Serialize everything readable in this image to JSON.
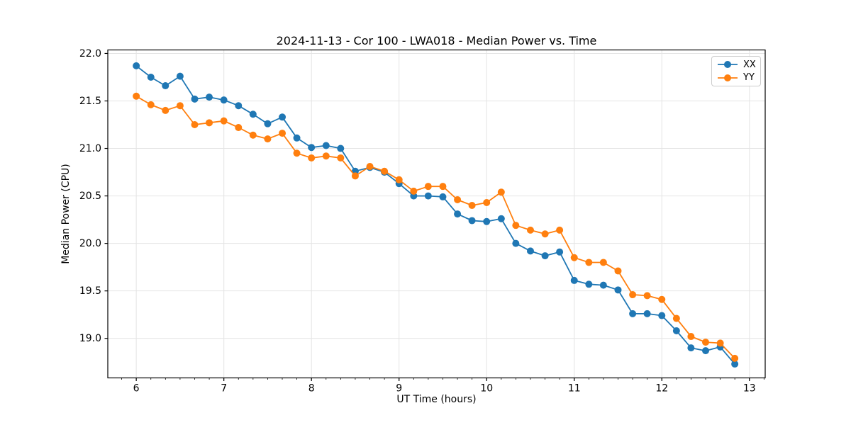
{
  "figure": {
    "title": "2024-11-13 - Cor 100 - LWA018 - Median Power vs. Time",
    "xlabel": "UT Time (hours)",
    "ylabel": "Median Power (CPU)"
  },
  "chart_data": {
    "type": "line",
    "title": "2024-11-13 - Cor 100 - LWA018 - Median Power vs. Time",
    "xlabel": "UT Time (hours)",
    "ylabel": "Median Power (CPU)",
    "grid": true,
    "legend_position": "upper right",
    "xlim": [
      5.675,
      13.18
    ],
    "ylim": [
      18.584,
      22.037
    ],
    "xticks": [
      6,
      7,
      8,
      9,
      10,
      11,
      12,
      13
    ],
    "yticks": [
      19.0,
      19.5,
      20.0,
      20.5,
      21.0,
      21.5,
      22.0
    ],
    "x_minor_tick_interval": 0.166667,
    "x": [
      6.0,
      6.167,
      6.333,
      6.5,
      6.667,
      6.833,
      7.0,
      7.167,
      7.333,
      7.5,
      7.667,
      7.833,
      8.0,
      8.167,
      8.333,
      8.5,
      8.667,
      8.833,
      9.0,
      9.167,
      9.333,
      9.5,
      9.667,
      9.833,
      10.0,
      10.167,
      10.333,
      10.5,
      10.667,
      10.833,
      11.0,
      11.167,
      11.333,
      11.5,
      11.667,
      11.833,
      12.0,
      12.167,
      12.333,
      12.5,
      12.667,
      12.833
    ],
    "series": [
      {
        "name": "XX",
        "color": "#1f77b4",
        "values": [
          21.87,
          21.75,
          21.66,
          21.76,
          21.52,
          21.54,
          21.51,
          21.45,
          21.36,
          21.26,
          21.33,
          21.11,
          21.01,
          21.03,
          21.0,
          20.76,
          20.8,
          20.75,
          20.63,
          20.5,
          20.5,
          20.49,
          20.31,
          20.24,
          20.23,
          20.26,
          20.0,
          19.92,
          19.87,
          19.91,
          19.61,
          19.57,
          19.56,
          19.51,
          19.26,
          19.26,
          19.24,
          19.08,
          18.9,
          18.87,
          18.91,
          18.73
        ]
      },
      {
        "name": "YY",
        "color": "#ff7f0e",
        "values": [
          21.55,
          21.46,
          21.4,
          21.45,
          21.25,
          21.27,
          21.29,
          21.22,
          21.14,
          21.1,
          21.16,
          20.95,
          20.9,
          20.92,
          20.9,
          20.71,
          20.81,
          20.76,
          20.67,
          20.55,
          20.6,
          20.6,
          20.46,
          20.4,
          20.43,
          20.54,
          20.19,
          20.14,
          20.1,
          20.14,
          19.85,
          19.8,
          19.8,
          19.71,
          19.46,
          19.45,
          19.41,
          19.21,
          19.02,
          18.96,
          18.95,
          18.79
        ]
      }
    ]
  }
}
